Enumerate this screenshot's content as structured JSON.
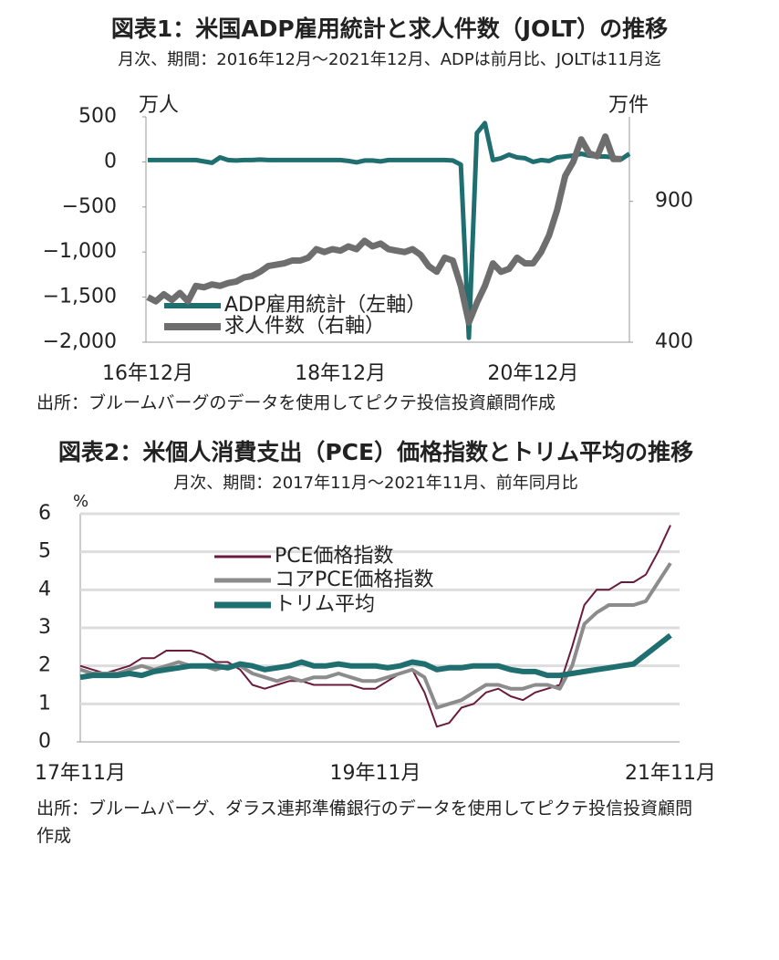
{
  "chart_data": [
    {
      "type": "line",
      "title": "図表1：米国ADP雇用統計と求人件数（JOLT）の推移",
      "subtitle": "月次、期間：2016年12月～2021年12月、ADPは前月比、JOLTは11月迄",
      "y_label": "万人",
      "y2_label": "万件",
      "source": "出所：ブルームバーグのデータを使用してピクテ投信投資顧問作成",
      "categories": [
        "16年12月",
        null,
        null,
        null,
        null,
        null,
        null,
        null,
        null,
        null,
        null,
        null,
        null,
        null,
        null,
        null,
        null,
        null,
        null,
        null,
        null,
        null,
        null,
        null,
        "18年12月",
        null,
        null,
        null,
        null,
        null,
        null,
        null,
        null,
        null,
        null,
        null,
        null,
        null,
        null,
        null,
        null,
        null,
        null,
        null,
        null,
        null,
        null,
        null,
        "20年12月",
        null,
        null,
        null,
        null,
        null,
        null,
        null,
        null,
        null,
        null,
        null,
        null
      ],
      "series": [
        {
          "name": "ADP雇用統計（左軸）",
          "color": "#1f6f70",
          "values": [
            20,
            20,
            20,
            20,
            20,
            20,
            20,
            5,
            -10,
            50,
            20,
            15,
            20,
            20,
            25,
            20,
            20,
            20,
            20,
            20,
            20,
            20,
            20,
            20,
            20,
            10,
            -5,
            15,
            15,
            5,
            20,
            20,
            20,
            20,
            20,
            20,
            20,
            20,
            15,
            -30,
            -1950,
            320,
            430,
            20,
            40,
            80,
            50,
            40,
            0,
            20,
            10,
            50,
            60,
            70,
            90,
            70,
            60,
            60,
            50,
            30,
            90
          ]
        },
        {
          "name": "求人件数（右軸）",
          "color": "#6e6e6e",
          "axis": "y2",
          "values": [
            560,
            545,
            570,
            550,
            575,
            545,
            600,
            595,
            605,
            600,
            610,
            615,
            630,
            635,
            650,
            670,
            675,
            680,
            690,
            690,
            700,
            730,
            720,
            730,
            725,
            740,
            730,
            760,
            740,
            750,
            730,
            725,
            720,
            730,
            710,
            670,
            650,
            700,
            690,
            600,
            470,
            540,
            600,
            680,
            650,
            660,
            700,
            680,
            680,
            720,
            780,
            870,
            990,
            1040,
            1120,
            1070,
            1060,
            1130,
            1050,
            1050,
            null
          ]
        }
      ],
      "ylim": [
        -2000,
        500
      ],
      "yticks": [
        500,
        0,
        {
          "value": -500,
          "label": "−500"
        },
        {
          "value": -1000,
          "label": "−1,000"
        },
        {
          "value": -1500,
          "label": "−1,500"
        },
        {
          "value": -2000,
          "label": "−2,000"
        }
      ],
      "y2lim": [
        400,
        1200
      ],
      "y2ticks": [
        900,
        400
      ],
      "grid": false
    },
    {
      "type": "line",
      "title": "図表2：米個人消費支出（PCE）価格指数とトリム平均の推移",
      "subtitle": "月次、期間：2017年11月～2021年11月、前年同月比",
      "y_label": "%",
      "source": "出所：ブルームバーグ、ダラス連邦準備銀行のデータを使用してピクテ投信投資顧問作成",
      "categories": [
        "17年11月",
        null,
        null,
        null,
        null,
        null,
        null,
        null,
        null,
        null,
        null,
        null,
        null,
        null,
        null,
        null,
        null,
        null,
        null,
        null,
        null,
        null,
        null,
        null,
        "19年11月",
        null,
        null,
        null,
        null,
        null,
        null,
        null,
        null,
        null,
        null,
        null,
        null,
        null,
        null,
        null,
        null,
        null,
        null,
        null,
        null,
        null,
        null,
        null,
        "21年11月"
      ],
      "series": [
        {
          "name": "PCE価格指数",
          "color": "#6a1b3c",
          "values": [
            2.0,
            1.9,
            1.8,
            1.9,
            2.0,
            2.2,
            2.2,
            2.4,
            2.4,
            2.4,
            2.3,
            2.1,
            2.1,
            1.9,
            1.5,
            1.4,
            1.5,
            1.6,
            1.6,
            1.5,
            1.5,
            1.5,
            1.5,
            1.4,
            1.4,
            1.6,
            1.8,
            1.9,
            1.3,
            0.4,
            0.5,
            0.9,
            1.0,
            1.3,
            1.4,
            1.2,
            1.1,
            1.3,
            1.4,
            1.5,
            2.5,
            3.6,
            4.0,
            4.0,
            4.2,
            4.2,
            4.4,
            5.0,
            5.7
          ]
        },
        {
          "name": "コアPCE価格指数",
          "color": "#8c8c8c",
          "values": [
            1.9,
            1.8,
            1.8,
            1.8,
            1.9,
            2.0,
            1.9,
            2.0,
            2.1,
            2.0,
            2.0,
            1.9,
            2.0,
            2.0,
            1.8,
            1.7,
            1.6,
            1.7,
            1.6,
            1.7,
            1.7,
            1.8,
            1.7,
            1.6,
            1.6,
            1.7,
            1.8,
            1.9,
            1.7,
            0.9,
            1.0,
            1.1,
            1.3,
            1.5,
            1.5,
            1.4,
            1.4,
            1.5,
            1.5,
            1.4,
            2.0,
            3.1,
            3.4,
            3.6,
            3.6,
            3.6,
            3.7,
            4.2,
            4.7
          ]
        },
        {
          "name": "トリム平均",
          "color": "#1f6f70",
          "values": [
            1.7,
            1.75,
            1.75,
            1.75,
            1.8,
            1.75,
            1.85,
            1.9,
            1.95,
            2.0,
            2.0,
            2.0,
            1.95,
            2.05,
            2.0,
            1.9,
            1.95,
            2.0,
            2.1,
            2.0,
            2.0,
            2.05,
            2.0,
            2.0,
            2.0,
            1.95,
            2.0,
            2.1,
            2.05,
            1.9,
            1.95,
            1.95,
            2.0,
            2.0,
            2.0,
            1.9,
            1.85,
            1.85,
            1.75,
            1.75,
            1.8,
            1.85,
            1.9,
            1.95,
            2.0,
            2.05,
            2.3,
            2.55,
            2.8
          ]
        }
      ],
      "ylim": [
        0,
        6
      ],
      "yticks": [
        0,
        1,
        2,
        3,
        4,
        5,
        6
      ],
      "grid": true
    }
  ]
}
